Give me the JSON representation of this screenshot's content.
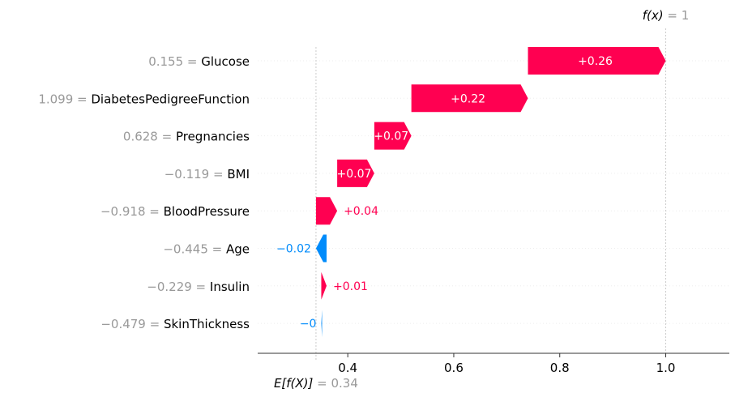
{
  "chart_data": {
    "type": "waterfall",
    "title": "",
    "xlabel": "",
    "ylabel": "",
    "xlim": [
      0.23,
      1.12
    ],
    "x_ticks": [
      0.4,
      0.6,
      0.8,
      1.0
    ],
    "x_tick_labels": [
      "0.4",
      "0.6",
      "0.8",
      "1.0"
    ],
    "base_value": 0.34,
    "base_label": {
      "name": "E[f(X)]",
      "value_text": "= 0.34"
    },
    "output_value": 1,
    "output_label": {
      "name": "f(x)",
      "value_text": "= 1"
    },
    "features": [
      {
        "feature_value": "0.155 =",
        "name": "Glucose",
        "contribution": 0.26,
        "label": "+0.26"
      },
      {
        "feature_value": "1.099 =",
        "name": "DiabetesPedigreeFunction",
        "contribution": 0.22,
        "label": "+0.22"
      },
      {
        "feature_value": "0.628 =",
        "name": "Pregnancies",
        "contribution": 0.07,
        "label": "+0.07"
      },
      {
        "feature_value": "−0.119 =",
        "name": "BMI",
        "contribution": 0.07,
        "label": "+0.07"
      },
      {
        "feature_value": "−0.918 =",
        "name": "BloodPressure",
        "contribution": 0.04,
        "label": "+0.04"
      },
      {
        "feature_value": "−0.445 =",
        "name": "Age",
        "contribution": -0.02,
        "label": "−0.02"
      },
      {
        "feature_value": "−0.229 =",
        "name": "Insulin",
        "contribution": 0.01,
        "label": "+0.01"
      },
      {
        "feature_value": "−0.479 =",
        "name": "SkinThickness",
        "contribution": -0.0015,
        "label": "−0"
      }
    ],
    "colors": {
      "positive": "#ff0051",
      "negative": "#008bfb",
      "muted_text": "#999999",
      "grid": "#cccccc"
    },
    "grid": false
  }
}
